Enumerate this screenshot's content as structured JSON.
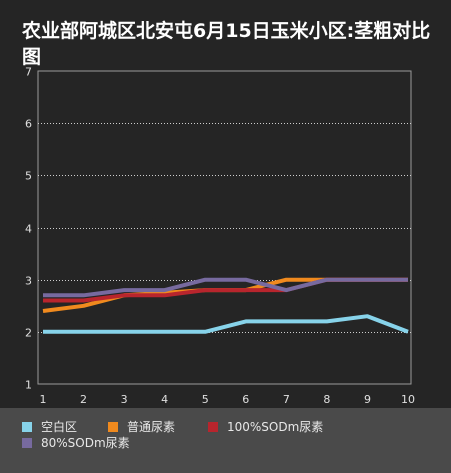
{
  "chart_data": {
    "type": "line",
    "title": "农业部阿城区北安屯6月15日玉米小区:茎粗对比图",
    "xlabel": "",
    "ylabel": "",
    "x": [
      1,
      2,
      3,
      4,
      5,
      6,
      7,
      8,
      9,
      10
    ],
    "ylim": [
      1,
      7
    ],
    "yticks": [
      1,
      2,
      3,
      4,
      5,
      6,
      7
    ],
    "grid": true,
    "legend_position": "bottom",
    "series": [
      {
        "name": "空白区",
        "color": "#87d3ea",
        "values": [
          2.0,
          2.0,
          2.0,
          2.0,
          2.0,
          2.2,
          2.2,
          2.2,
          2.3,
          2.0
        ]
      },
      {
        "name": "普通尿素",
        "color": "#f08a1e",
        "values": [
          2.4,
          2.5,
          2.7,
          2.75,
          2.8,
          2.8,
          3.0,
          3.0,
          3.0,
          3.0
        ]
      },
      {
        "name": "100%SODm尿素",
        "color": "#b8252d",
        "values": [
          2.6,
          2.6,
          2.7,
          2.7,
          2.8,
          2.8,
          2.8,
          3.0,
          3.0,
          3.0
        ]
      },
      {
        "name": "80%SODm尿素",
        "color": "#776a9f",
        "values": [
          2.7,
          2.7,
          2.8,
          2.8,
          3.0,
          3.0,
          2.8,
          3.0,
          3.0,
          3.0
        ]
      }
    ]
  }
}
